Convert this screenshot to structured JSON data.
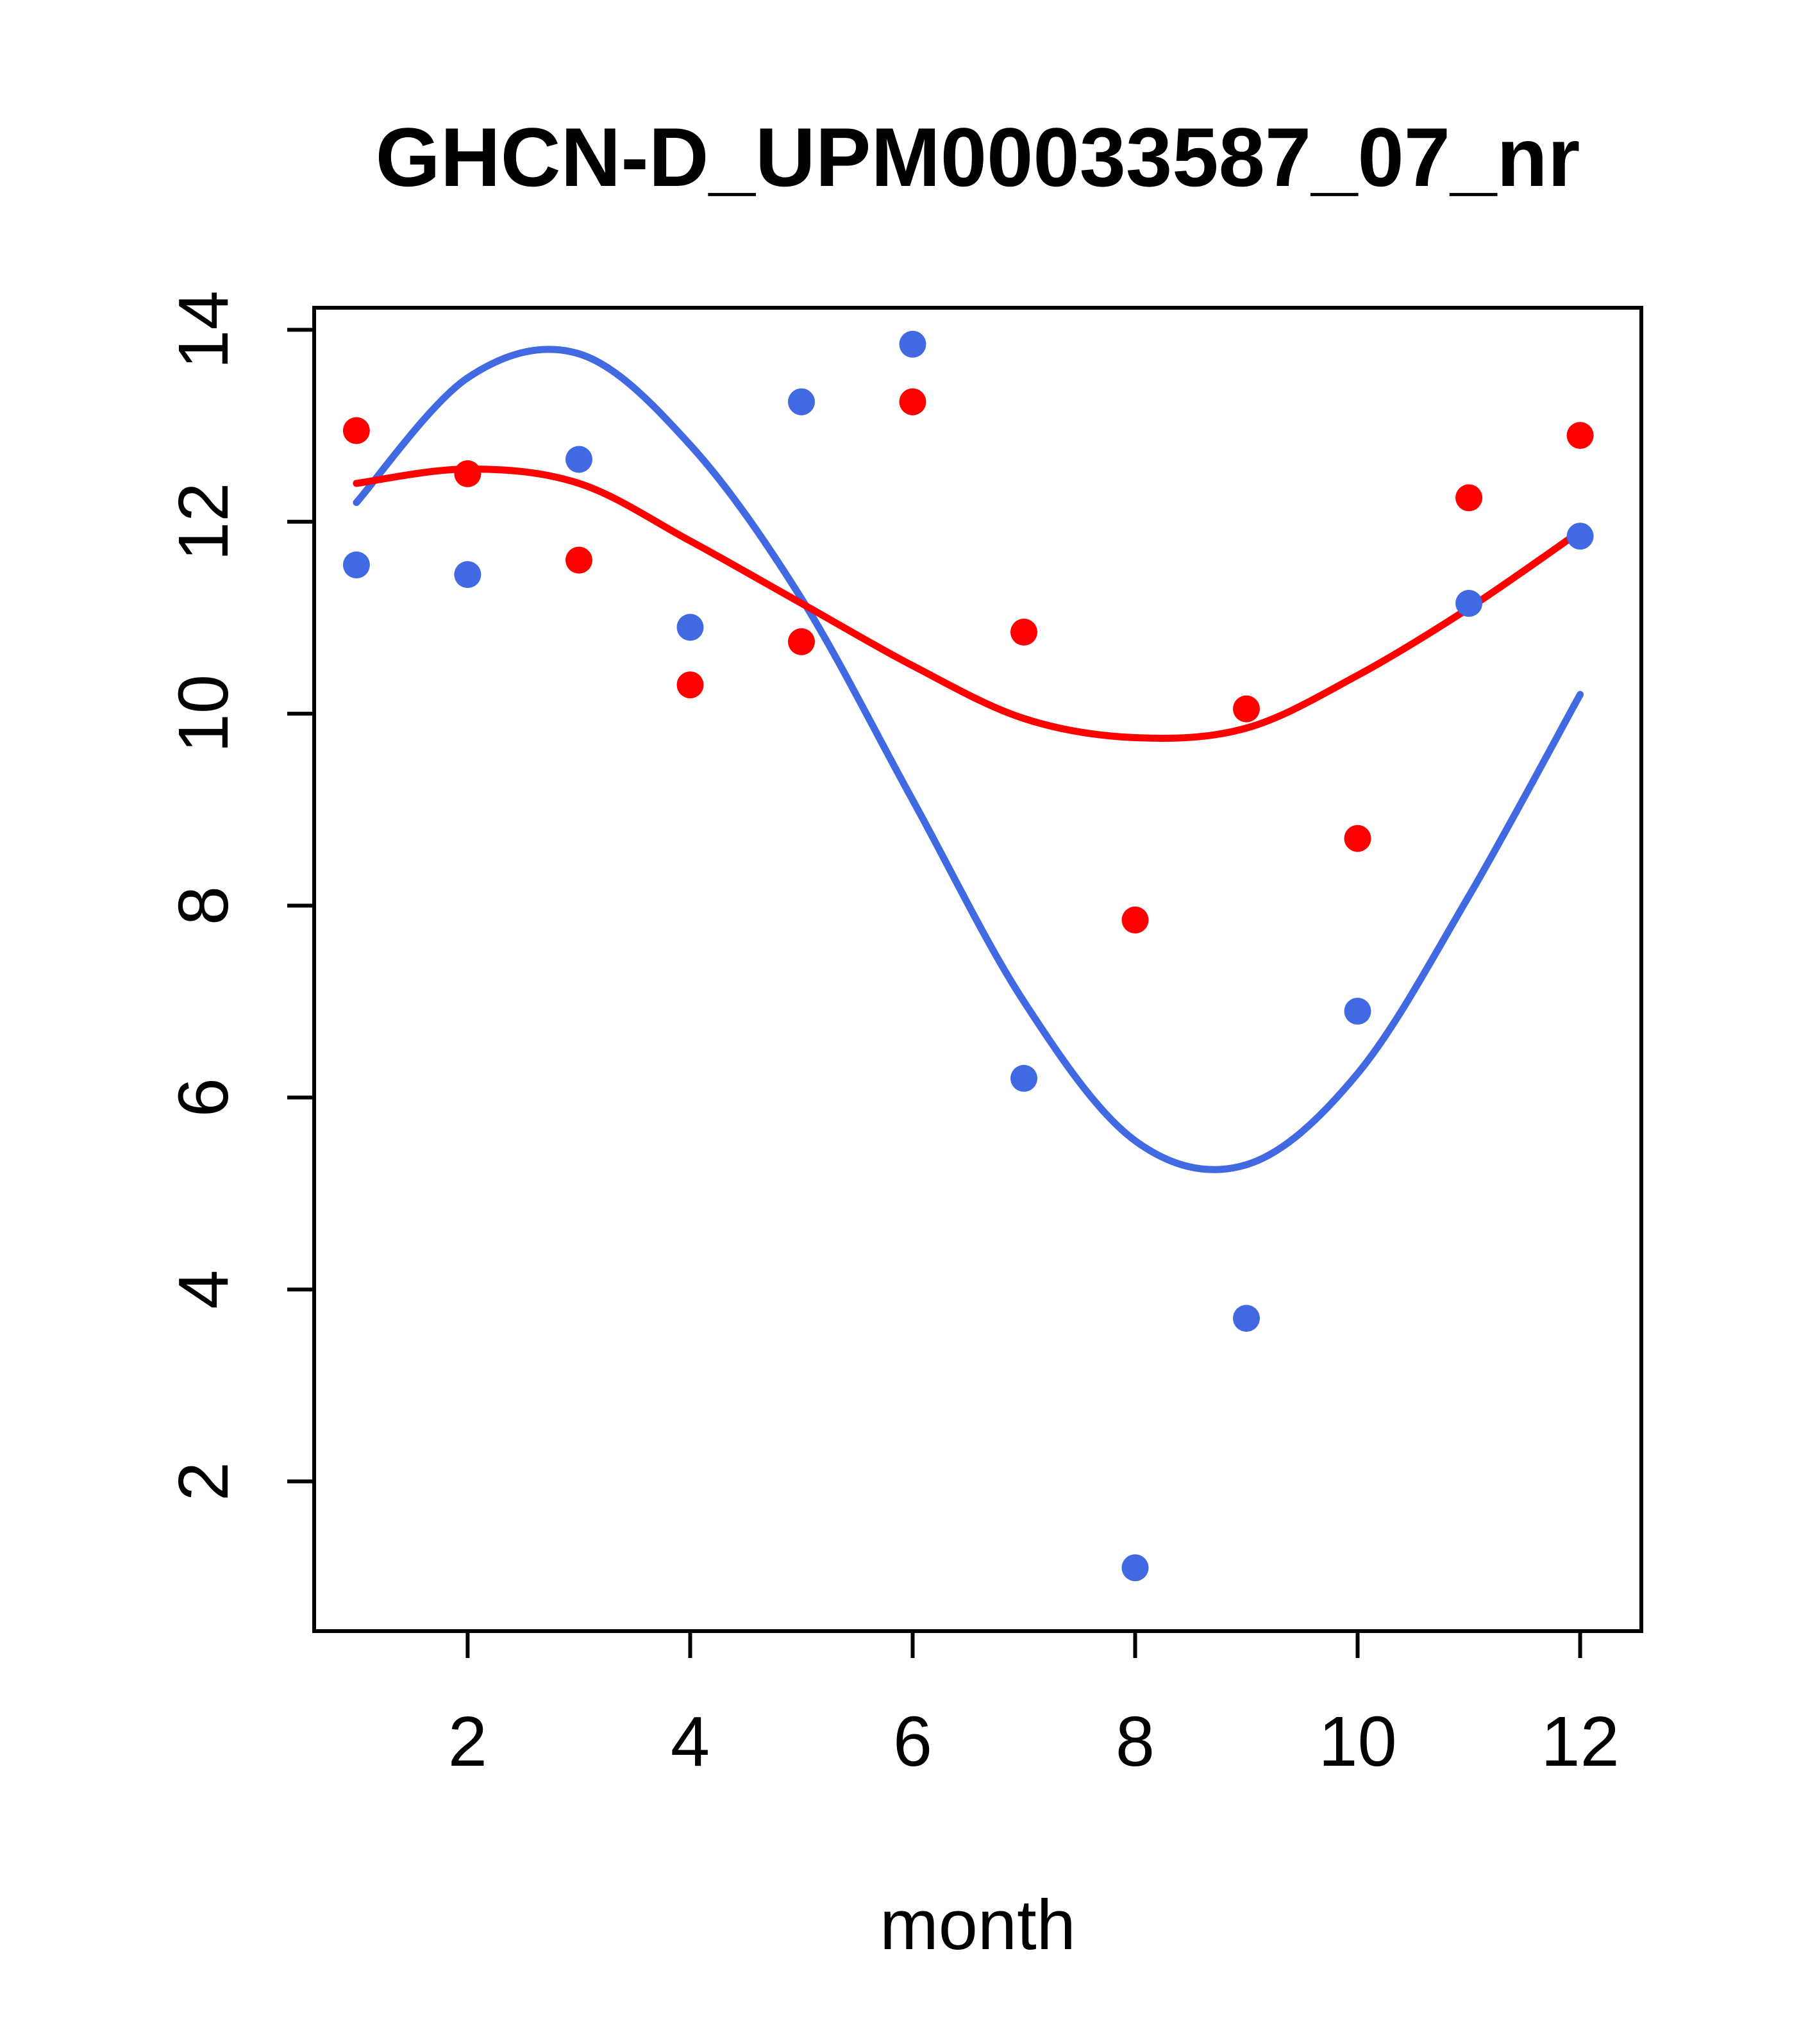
{
  "figure": {
    "title": "GHCN-D_UPM00033587_07_nr",
    "xlabel": "month"
  },
  "chart_data": {
    "type": "scatter",
    "title": "GHCN-D_UPM00033587_07_nr",
    "xlabel": "month",
    "ylabel": "",
    "x": [
      1,
      2,
      3,
      4,
      5,
      6,
      7,
      8,
      9,
      10,
      11,
      12
    ],
    "xlim": [
      0.62,
      12.55
    ],
    "ylim": [
      0.44,
      14.23
    ],
    "xticks": [
      2,
      4,
      6,
      8,
      10,
      12
    ],
    "yticks": [
      2,
      4,
      6,
      8,
      10,
      12,
      14
    ],
    "grid": false,
    "legend": "none",
    "colors": {
      "blue": "#4169e1",
      "red": "#ff0000"
    },
    "series": [
      {
        "name": "blue-smooth",
        "kind": "line",
        "color": "#4169e1",
        "values": [
          12.2,
          13.5,
          13.75,
          12.8,
          11.2,
          9.1,
          7.0,
          5.55,
          5.3,
          6.25,
          8.1,
          10.2
        ]
      },
      {
        "name": "red-smooth",
        "kind": "line",
        "color": "#ff0000",
        "values": [
          12.4,
          12.55,
          12.4,
          11.8,
          11.15,
          10.5,
          9.95,
          9.75,
          9.85,
          10.4,
          11.1,
          11.9
        ]
      },
      {
        "name": "blue-points",
        "kind": "points",
        "color": "#4169e1",
        "values": [
          11.55,
          11.45,
          12.65,
          10.9,
          13.25,
          13.85,
          6.2,
          1.1,
          3.7,
          6.9,
          11.15,
          11.85
        ]
      },
      {
        "name": "red-points",
        "kind": "points",
        "color": "#ff0000",
        "values": [
          12.95,
          12.5,
          11.6,
          10.3,
          10.75,
          13.25,
          10.85,
          7.85,
          10.05,
          8.7,
          12.25,
          12.9
        ]
      }
    ]
  }
}
